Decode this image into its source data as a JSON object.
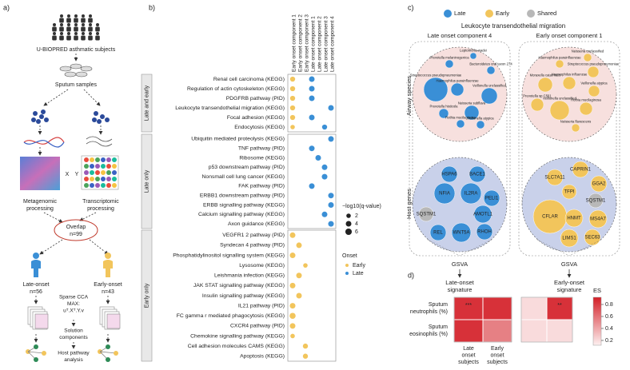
{
  "panel_a": {
    "label": "a)",
    "subjects": "U-BIOPRED asthmatic subjects",
    "samples": "Sputum samples",
    "x": "X",
    "y": "Y",
    "metagenomic": [
      "Metagenomic",
      "processing"
    ],
    "transcriptomic": [
      "Transcriptomic",
      "processing"
    ],
    "overlap": [
      "Overlap",
      "n=99"
    ],
    "late": [
      "Late-onset",
      "n=56"
    ],
    "early": [
      "Early-onset",
      "n=43"
    ],
    "cca": [
      "Sparse CCA",
      "MAX:",
      "uᵀ.Xᵀ.Y.v"
    ],
    "solution": [
      "Solution",
      "components"
    ],
    "host": [
      "Host pathway",
      "analysis"
    ]
  },
  "panel_b": {
    "label": "b)",
    "columns": [
      {
        "name": "Early onset component 1",
        "color": "#f2c55c"
      },
      {
        "name": "Early onset component 2",
        "color": "#f2c55c"
      },
      {
        "name": "Early onset component 3",
        "color": "#f2c55c"
      },
      {
        "name": "Late onset component 1",
        "color": "#3a8fd6"
      },
      {
        "name": "Late onset component 2",
        "color": "#3a8fd6"
      },
      {
        "name": "Late onset component 3",
        "color": "#3a8fd6"
      },
      {
        "name": "Late onset component 4",
        "color": "#3a8fd6"
      }
    ],
    "groups": [
      {
        "name": "Late and early",
        "rows": [
          {
            "name": "Renal cell carcinoma (KEGG)",
            "values": [
              3,
              null,
              null,
              4,
              null,
              null,
              null
            ]
          },
          {
            "name": "Regulation of actin cytoskeleton (KEGG)",
            "values": [
              3,
              null,
              null,
              4,
              null,
              null,
              null
            ]
          },
          {
            "name": "PDGFRB pathway (PID)",
            "values": [
              3,
              null,
              null,
              4,
              null,
              null,
              null
            ]
          },
          {
            "name": "Leukocyte transendothelial migration (KEGG)",
            "values": [
              3,
              null,
              null,
              null,
              null,
              null,
              4
            ]
          },
          {
            "name": "Focal adhesion (KEGG)",
            "values": [
              3,
              null,
              null,
              4,
              null,
              null,
              null
            ]
          },
          {
            "name": "Endocytosis (KEGG)",
            "values": [
              2,
              null,
              null,
              null,
              null,
              3,
              null
            ]
          }
        ]
      },
      {
        "name": "Late only",
        "rows": [
          {
            "name": "Ubiquitin mediated proteolysis (KEGG)",
            "values": [
              null,
              null,
              null,
              null,
              null,
              null,
              4
            ]
          },
          {
            "name": "TNF pathway (PID)",
            "values": [
              null,
              null,
              null,
              4,
              null,
              null,
              null
            ]
          },
          {
            "name": "Ribosome (KEGG)",
            "values": [
              null,
              null,
              null,
              null,
              4,
              null,
              null
            ]
          },
          {
            "name": "p53 downstream pathway (PID)",
            "values": [
              null,
              null,
              null,
              null,
              null,
              4,
              null
            ]
          },
          {
            "name": "Nonsmall cell lung cancer (KEGG)",
            "values": [
              null,
              null,
              null,
              null,
              null,
              4,
              null
            ]
          },
          {
            "name": "FAK pathway (PID)",
            "values": [
              null,
              null,
              null,
              4,
              null,
              null,
              null
            ]
          },
          {
            "name": "ERBB1 downstream pathway (PID)",
            "values": [
              null,
              null,
              null,
              null,
              null,
              null,
              4
            ]
          },
          {
            "name": "ERBB signalling pathway (KEGG)",
            "values": [
              null,
              null,
              null,
              null,
              null,
              null,
              4
            ]
          },
          {
            "name": "Calcium signalling pathway (KEGG)",
            "values": [
              null,
              null,
              null,
              null,
              null,
              4,
              null
            ]
          },
          {
            "name": "Axon guidance (KEGG)",
            "values": [
              null,
              null,
              null,
              null,
              null,
              null,
              4
            ]
          }
        ]
      },
      {
        "name": "Early only",
        "rows": [
          {
            "name": "VEGFR1 2 pathway (PID)",
            "values": [
              4,
              null,
              null,
              null,
              null,
              null,
              null
            ]
          },
          {
            "name": "Syndecan 4 pathway (PID)",
            "values": [
              null,
              4,
              null,
              null,
              null,
              null,
              null
            ]
          },
          {
            "name": "Phosphatidylinositol signalling system (KEGG)",
            "values": [
              4,
              null,
              null,
              null,
              null,
              null,
              null
            ]
          },
          {
            "name": "Lysosome (KEGG)",
            "values": [
              null,
              null,
              2,
              null,
              null,
              null,
              null
            ]
          },
          {
            "name": "Leishmania infection (KEGG)",
            "values": [
              null,
              4,
              null,
              null,
              null,
              null,
              null
            ]
          },
          {
            "name": "JAK STAT signalling pathway (KEGG)",
            "values": [
              4,
              null,
              null,
              null,
              null,
              null,
              null
            ]
          },
          {
            "name": "Insulin signalling pathway (KEGG)",
            "values": [
              null,
              4,
              null,
              null,
              null,
              null,
              null
            ]
          },
          {
            "name": "IL21 pathway (PID)",
            "values": [
              4,
              null,
              null,
              null,
              null,
              null,
              null
            ]
          },
          {
            "name": "FC gamma r mediated phagocytosis (KEGG)",
            "values": [
              5,
              null,
              null,
              null,
              null,
              null,
              null
            ]
          },
          {
            "name": "CXCR4 pathway (PID)",
            "values": [
              4,
              null,
              null,
              null,
              null,
              null,
              null
            ]
          },
          {
            "name": "Chemokine signalling pathway (KEGG)",
            "values": [
              2,
              null,
              null,
              null,
              null,
              null,
              null
            ]
          },
          {
            "name": "Cell adhesion molecules CAMS (KEGG)",
            "values": [
              null,
              null,
              3,
              null,
              null,
              null,
              null
            ]
          },
          {
            "name": "Apoptosis (KEGG)",
            "values": [
              null,
              null,
              3,
              null,
              null,
              null,
              null
            ]
          }
        ]
      }
    ],
    "size_legend_title": "−log10(q-value)",
    "size_legend": [
      2,
      4,
      6
    ],
    "onset_legend_title": "Onset",
    "onset_legend": [
      {
        "name": "Early",
        "color": "#f2c55c"
      },
      {
        "name": "Late",
        "color": "#3a8fd6"
      }
    ]
  },
  "panel_c": {
    "label": "c)",
    "legend": [
      {
        "name": "Late",
        "color": "#3a8fd6"
      },
      {
        "name": "Early",
        "color": "#f2c55c"
      },
      {
        "name": "Shared",
        "color": "#b8b8b8"
      }
    ],
    "title": "Leukocyte transendothelial migration",
    "row_labels": [
      "Airway species",
      "Host genes"
    ],
    "gsva": "GSVA",
    "sides": [
      {
        "subtitle": "Late onset component 4",
        "species": [
          {
            "name": "Leptotrichia wadei",
            "group": "Late"
          },
          {
            "name": "Prevotella melaninogenica",
            "group": "Late"
          },
          {
            "name": "Bacteroidetes oral taxon 274",
            "group": "Late"
          },
          {
            "name": "Streptococcus pseudopneumoniae",
            "group": "Late"
          },
          {
            "name": "Haemophilus parainfluenzae",
            "group": "Late"
          },
          {
            "name": "Veillonella unclassified",
            "group": "Late"
          },
          {
            "name": "Neisseria subflava",
            "group": "Late"
          },
          {
            "name": "Prevotella histicola",
            "group": "Late"
          },
          {
            "name": "Rothia mucilaginosa",
            "group": "Late"
          },
          {
            "name": "Veillonella atypica",
            "group": "Late"
          }
        ],
        "genes": [
          {
            "name": "HSPA6",
            "group": "Late"
          },
          {
            "name": "BACE1",
            "group": "Late"
          },
          {
            "name": "NFIA",
            "group": "Late"
          },
          {
            "name": "IL2RA",
            "group": "Late"
          },
          {
            "name": "PELI1",
            "group": "Late"
          },
          {
            "name": "SQSTM1",
            "group": "Shared"
          },
          {
            "name": "AMOTL1",
            "group": "Late"
          },
          {
            "name": "REL",
            "group": "Late"
          },
          {
            "name": "WNT5A",
            "group": "Late"
          },
          {
            "name": "RHOH",
            "group": "Late"
          }
        ],
        "signature": [
          "Late-onset",
          "signature"
        ]
      },
      {
        "subtitle": "Early onset component 1",
        "species": [
          {
            "name": "Neisseria unclassified",
            "group": "Early"
          },
          {
            "name": "Haemophilus parainfluenzae",
            "group": "Early"
          },
          {
            "name": "Streptococcus pseudopneumoniae",
            "group": "Early"
          },
          {
            "name": "Moraxella catarrhalis",
            "group": "Early"
          },
          {
            "name": "Haemophilus influenzae",
            "group": "Early"
          },
          {
            "name": "Veillonella atypica",
            "group": "Early"
          },
          {
            "name": "Prevotella sp C561",
            "group": "Early"
          },
          {
            "name": "Veillonella unclassified",
            "group": "Early"
          },
          {
            "name": "Rothia mucilaginosa",
            "group": "Early"
          },
          {
            "name": "Neisseria flavescens",
            "group": "Early"
          }
        ],
        "genes": [
          {
            "name": "CAPRIN1",
            "group": "Early"
          },
          {
            "name": "SLC7A11",
            "group": "Early"
          },
          {
            "name": "GGA2",
            "group": "Early"
          },
          {
            "name": "TFPI",
            "group": "Early"
          },
          {
            "name": "SQSTM1",
            "group": "Shared"
          },
          {
            "name": "CFLAR",
            "group": "Early"
          },
          {
            "name": "HNMT",
            "group": "Early"
          },
          {
            "name": "MS4A7",
            "group": "Early"
          },
          {
            "name": "LIMS1",
            "group": "Early"
          },
          {
            "name": "SEC63",
            "group": "Early"
          }
        ],
        "signature": [
          "Early-onset",
          "signature"
        ]
      }
    ]
  },
  "panel_d": {
    "label": "d)",
    "rows": [
      [
        "Sputum",
        "neutrophils (%)"
      ],
      [
        "Sputum",
        "eosinophils (%)"
      ]
    ],
    "columns": [
      [
        "Late",
        "onset",
        "subjects"
      ],
      [
        "Early",
        "onset",
        "subjects"
      ]
    ],
    "matrices": [
      {
        "values": [
          [
            0.85,
            0.85
          ],
          [
            0.85,
            0.55
          ]
        ],
        "annotations": [
          [
            "***",
            null
          ],
          [
            null,
            null
          ]
        ]
      },
      {
        "values": [
          [
            0.2,
            0.85
          ],
          [
            0.2,
            0.2
          ]
        ],
        "annotations": [
          [
            null,
            "**"
          ],
          [
            null,
            null
          ]
        ]
      }
    ],
    "colorbar": {
      "title": "ES",
      "lim": [
        0.12,
        0.92
      ],
      "ticks": [
        0.2,
        0.4,
        0.6,
        0.8
      ]
    }
  }
}
